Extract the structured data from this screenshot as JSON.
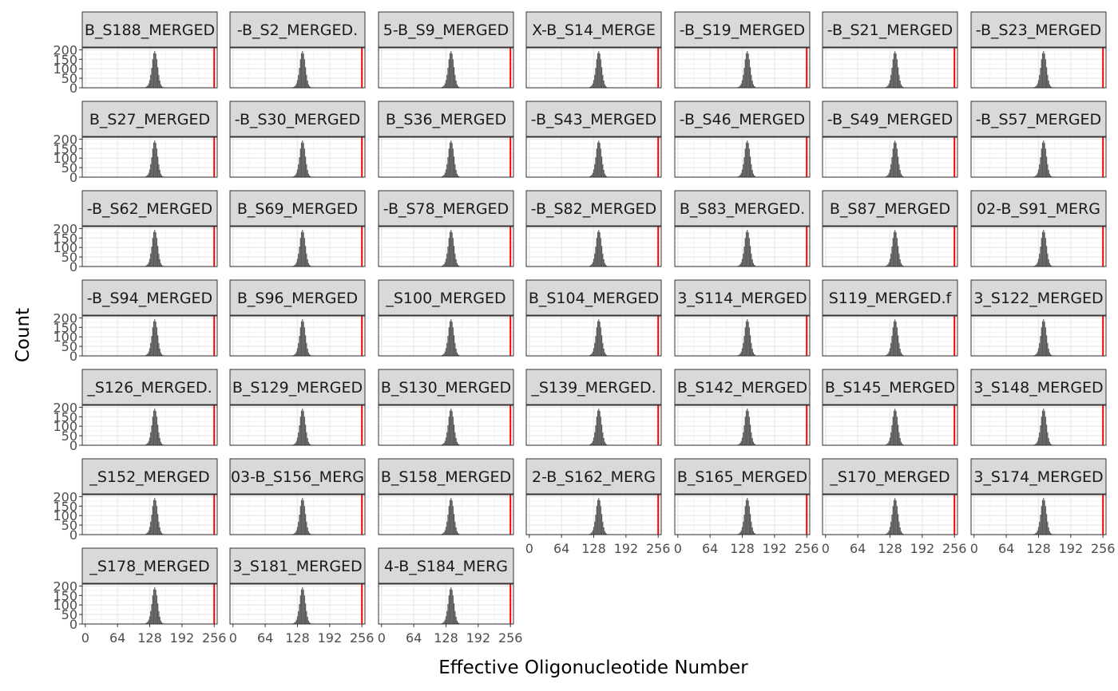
{
  "chart_data": {
    "type": "bar",
    "subtype": "faceted-histogram",
    "xlabel": "Effective Oligonucleotide Number",
    "ylabel": "Count",
    "xlim": [
      -6,
      262
    ],
    "ylim": [
      0,
      210
    ],
    "x_ticks": [
      0,
      64,
      128,
      192,
      256
    ],
    "y_ticks": [
      0,
      50,
      100,
      150,
      200
    ],
    "y_tick_labels": [
      "0",
      "50",
      "100",
      "150",
      "200"
    ],
    "grid": true,
    "theme": "bw",
    "reference_line": {
      "x": 256,
      "color": "#ff0000"
    },
    "bar_color": "#595959",
    "layout": {
      "ncol": 7,
      "nrow": 7
    },
    "facets": [
      "B_S188_MERGED",
      "-B_S2_MERGED.",
      "5-B_S9_MERGED",
      "X-B_S14_MERGE",
      "-B_S19_MERGED",
      "-B_S21_MERGED",
      "-B_S23_MERGED",
      "B_S27_MERGED",
      "-B_S30_MERGED",
      "B_S36_MERGED",
      "-B_S43_MERGED",
      "-B_S46_MERGED",
      "-B_S49_MERGED",
      "-B_S57_MERGED",
      "-B_S62_MERGED",
      "B_S69_MERGED",
      "-B_S78_MERGED",
      "-B_S82_MERGED",
      "B_S83_MERGED.",
      "B_S87_MERGED",
      "02-B_S91_MERG",
      "-B_S94_MERGED",
      "B_S96_MERGED",
      "_S100_MERGED",
      "B_S104_MERGED",
      "3_S114_MERGED",
      "S119_MERGED.f",
      "3_S122_MERGED",
      "_S126_MERGED.",
      "B_S129_MERGED",
      "B_S130_MERGED",
      "_S139_MERGED.",
      "B_S142_MERGED",
      "B_S145_MERGED",
      "3_S148_MERGED",
      "_S152_MERGED",
      "03-B_S156_MERG",
      "B_S158_MERGED",
      "2-B_S162_MERG",
      "B_S165_MERGED",
      "_S170_MERGED",
      "3_S174_MERGED",
      "_S178_MERGED",
      "3_S181_MERGED",
      "4-B_S184_MERG"
    ],
    "histogram": {
      "bin_width": 2,
      "bins": [
        {
          "x": 116,
          "count": 1
        },
        {
          "x": 118,
          "count": 2
        },
        {
          "x": 120,
          "count": 4
        },
        {
          "x": 122,
          "count": 7
        },
        {
          "x": 124,
          "count": 12
        },
        {
          "x": 126,
          "count": 22
        },
        {
          "x": 128,
          "count": 40
        },
        {
          "x": 130,
          "count": 68
        },
        {
          "x": 132,
          "count": 105
        },
        {
          "x": 134,
          "count": 150
        },
        {
          "x": 136,
          "count": 182
        },
        {
          "x": 138,
          "count": 192
        },
        {
          "x": 140,
          "count": 180
        },
        {
          "x": 142,
          "count": 150
        },
        {
          "x": 144,
          "count": 108
        },
        {
          "x": 146,
          "count": 68
        },
        {
          "x": 148,
          "count": 38
        },
        {
          "x": 150,
          "count": 18
        },
        {
          "x": 152,
          "count": 9
        },
        {
          "x": 154,
          "count": 4
        },
        {
          "x": 156,
          "count": 2
        }
      ]
    }
  }
}
